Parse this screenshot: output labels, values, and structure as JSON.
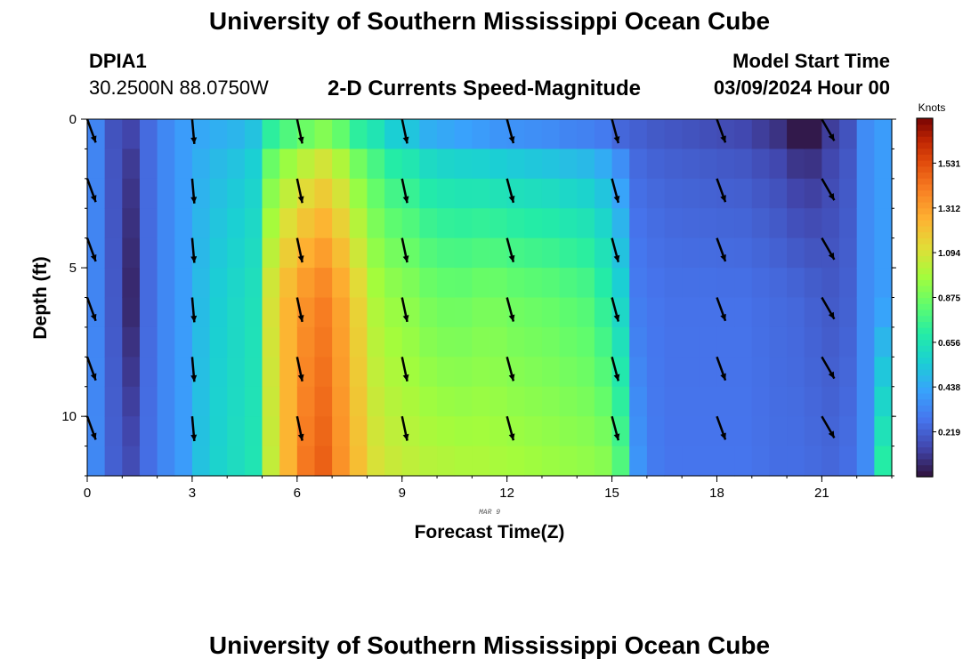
{
  "header": {
    "title": "University of Southern Mississippi Ocean Cube",
    "station_id": "DPIA1",
    "coords": "30.2500N  88.0750W",
    "plot_title": "2-D Currents Speed-Magnitude",
    "model_start_label": "Model Start Time",
    "model_start_value": "03/09/2024 Hour 00"
  },
  "footer": {
    "title": "University of Southern Mississippi Ocean Cube"
  },
  "chart_data": {
    "type": "heatmap",
    "title": "2-D Currents Speed-Magnitude",
    "xlabel": "Forecast Time(Z)",
    "ylabel": "Depth (ft)",
    "date_label": "MAR 9",
    "x_ticks": [
      0,
      3,
      6,
      9,
      12,
      15,
      18,
      21
    ],
    "x_tick_labels": [
      "0",
      "3",
      "6",
      "9",
      "12",
      "15",
      "18",
      "21"
    ],
    "y_ticks": [
      0,
      5,
      10
    ],
    "y_tick_labels": [
      "0",
      "5",
      "10"
    ],
    "xlim": [
      0,
      23
    ],
    "ylim_depth_ft": [
      0,
      12
    ],
    "colorbar": {
      "unit": "Knots",
      "ticks": [
        0.219,
        0.438,
        0.656,
        0.875,
        1.094,
        1.312,
        1.531
      ],
      "tick_labels": [
        "0.219",
        "0.438",
        "0.656",
        "0.875",
        "1.094",
        "1.312",
        "1.531"
      ],
      "range": [
        0.0,
        1.75
      ]
    },
    "time_hours": [
      0,
      0.5,
      1,
      1.5,
      2,
      2.5,
      3,
      3.5,
      4,
      4.5,
      5,
      5.5,
      6,
      6.5,
      7,
      7.5,
      8,
      8.5,
      9,
      9.5,
      10,
      10.5,
      11,
      11.5,
      12,
      12.5,
      13,
      13.5,
      14,
      14.5,
      15,
      15.5,
      16,
      16.5,
      17,
      17.5,
      18,
      18.5,
      19,
      19.5,
      20,
      20.5,
      21,
      21.5,
      22,
      22.5
    ],
    "speed_surface_knots": [
      0.33,
      0.18,
      0.14,
      0.25,
      0.34,
      0.4,
      0.44,
      0.46,
      0.48,
      0.52,
      0.72,
      0.8,
      0.86,
      0.91,
      0.84,
      0.72,
      0.66,
      0.56,
      0.53,
      0.46,
      0.44,
      0.42,
      0.4,
      0.38,
      0.37,
      0.36,
      0.35,
      0.33,
      0.32,
      0.3,
      0.24,
      0.22,
      0.2,
      0.19,
      0.18,
      0.17,
      0.16,
      0.15,
      0.12,
      0.09,
      0.02,
      0.02,
      0.12,
      0.18,
      0.35,
      0.4
    ],
    "speed_mid_knots": [
      0.33,
      0.2,
      0.06,
      0.25,
      0.34,
      0.4,
      0.5,
      0.56,
      0.6,
      0.64,
      1.1,
      1.25,
      1.35,
      1.4,
      1.3,
      1.15,
      1.0,
      0.95,
      0.92,
      0.88,
      0.86,
      0.86,
      0.88,
      0.88,
      0.86,
      0.85,
      0.84,
      0.82,
      0.8,
      0.72,
      0.58,
      0.3,
      0.28,
      0.27,
      0.27,
      0.27,
      0.27,
      0.27,
      0.26,
      0.25,
      0.24,
      0.22,
      0.2,
      0.22,
      0.35,
      0.4
    ],
    "speed_bottom_knots": [
      0.34,
      0.22,
      0.16,
      0.26,
      0.34,
      0.4,
      0.52,
      0.58,
      0.62,
      0.66,
      1.05,
      1.25,
      1.42,
      1.48,
      1.35,
      1.22,
      1.1,
      1.06,
      1.04,
      1.02,
      1.01,
      1.0,
      1.0,
      0.99,
      0.98,
      0.97,
      0.96,
      0.95,
      0.94,
      0.92,
      0.8,
      0.38,
      0.3,
      0.28,
      0.28,
      0.28,
      0.28,
      0.28,
      0.27,
      0.26,
      0.26,
      0.25,
      0.24,
      0.26,
      0.35,
      0.7
    ],
    "arrow_times_hours": [
      0,
      3,
      6,
      9,
      12,
      15,
      18,
      21
    ],
    "arrow_depths_ft": [
      0,
      2,
      4,
      6,
      8,
      10
    ],
    "arrow_directions_deg": [
      160,
      175,
      168,
      168,
      165,
      165,
      160,
      150
    ]
  }
}
